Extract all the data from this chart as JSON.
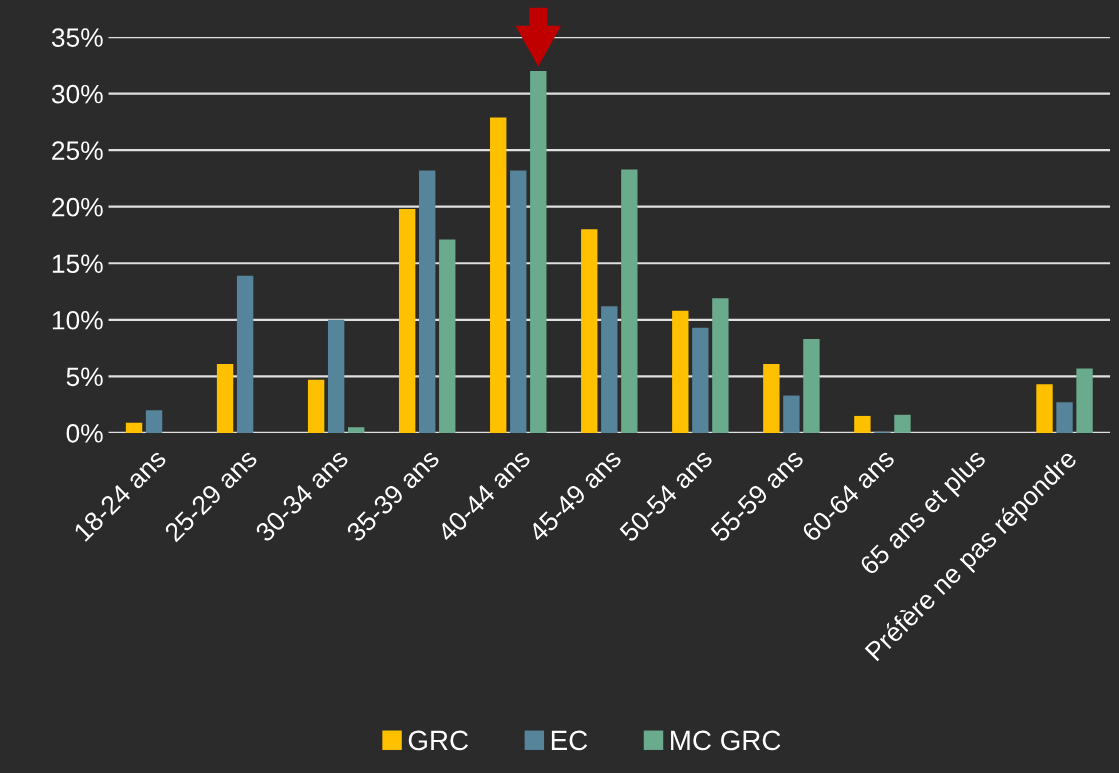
{
  "chart_data": {
    "type": "bar",
    "categories": [
      "18-24 ans",
      "25-29 ans",
      "30-34 ans",
      "35-39 ans",
      "40-44 ans",
      "45-49 ans",
      "50-54 ans",
      "55-59 ans",
      "60-64 ans",
      "65 ans et plus",
      "Préfère ne pas répondre"
    ],
    "series": [
      {
        "name": "GRC",
        "color": "#ffc000",
        "values": [
          0.9,
          6.1,
          4.7,
          19.8,
          27.9,
          18.0,
          10.8,
          6.1,
          1.5,
          0,
          4.3
        ]
      },
      {
        "name": "EC",
        "color": "#55849b",
        "values": [
          2.0,
          13.9,
          10.0,
          23.2,
          23.2,
          11.2,
          9.3,
          3.3,
          0.1,
          0,
          2.7
        ]
      },
      {
        "name": "MC GRC",
        "color": "#6aab8e",
        "values": [
          0,
          0,
          0.5,
          17.1,
          32.0,
          23.3,
          11.9,
          8.3,
          1.6,
          0,
          5.7
        ]
      }
    ],
    "ylim": [
      0,
      35
    ],
    "yticks": [
      {
        "value": 0,
        "label": "0%"
      },
      {
        "value": 5,
        "label": "5%"
      },
      {
        "value": 10,
        "label": "10%"
      },
      {
        "value": 15,
        "label": "15%"
      },
      {
        "value": 20,
        "label": "20%"
      },
      {
        "value": 25,
        "label": "25%"
      },
      {
        "value": 30,
        "label": "30%"
      },
      {
        "value": 35,
        "label": "35%"
      }
    ],
    "grid": "y",
    "legend": "bottom"
  }
}
